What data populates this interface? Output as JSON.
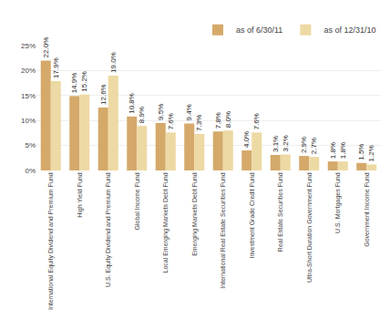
{
  "chart_data": {
    "type": "bar",
    "categories": [
      "International Equity Dividend and Premium Fund",
      "High Yield Fund",
      "U.S. Equity Dividend and Premium Fund",
      "Global Income Fund",
      "Local Emerging Markets Debt Fund",
      "Emerging Markets Debt Fund",
      "International Real Estate Securities Fund",
      "Investment Grade Credit Fund",
      "Real Estate Securities Fund",
      "Ultra-Short Duration Government Fund",
      "U.S. Mortgages Fund",
      "Government Income Fund"
    ],
    "series": [
      {
        "name": "as of 6/30/11",
        "color": "#D4A96A",
        "values": [
          22.0,
          14.9,
          12.6,
          10.8,
          9.5,
          9.4,
          7.8,
          4.0,
          3.1,
          2.9,
          1.8,
          1.5
        ],
        "value_labels": [
          "22.0%",
          "14.9%",
          "12.6%",
          "10.8%",
          "9.5%",
          "9.4%",
          "7.8%",
          "4.0%",
          "3.1%",
          "2.9%",
          "1.8%",
          "1.5%"
        ]
      },
      {
        "name": "as of 12/31/10",
        "color": "#EDD9A3",
        "values": [
          17.9,
          15.2,
          19.0,
          8.9,
          7.6,
          7.3,
          8.0,
          7.6,
          3.2,
          2.7,
          1.8,
          1.2
        ],
        "value_labels": [
          "17.9%",
          "15.2%",
          "19.0%",
          "8.9%",
          "7.6%",
          "7.3%",
          "8.0%",
          "7.6%",
          "3.2%",
          "2.7%",
          "1.8%",
          "1.2%"
        ]
      }
    ],
    "ylim": [
      0,
      25
    ],
    "yticks": [
      {
        "value": 0,
        "label": "0%"
      },
      {
        "value": 5,
        "label": "5%"
      },
      {
        "value": 10,
        "label": "10%"
      },
      {
        "value": 15,
        "label": "15%"
      },
      {
        "value": 20,
        "label": "20%"
      },
      {
        "value": 25,
        "label": "25%"
      }
    ],
    "grid": true,
    "legend": "upper right",
    "data_labels": true
  }
}
